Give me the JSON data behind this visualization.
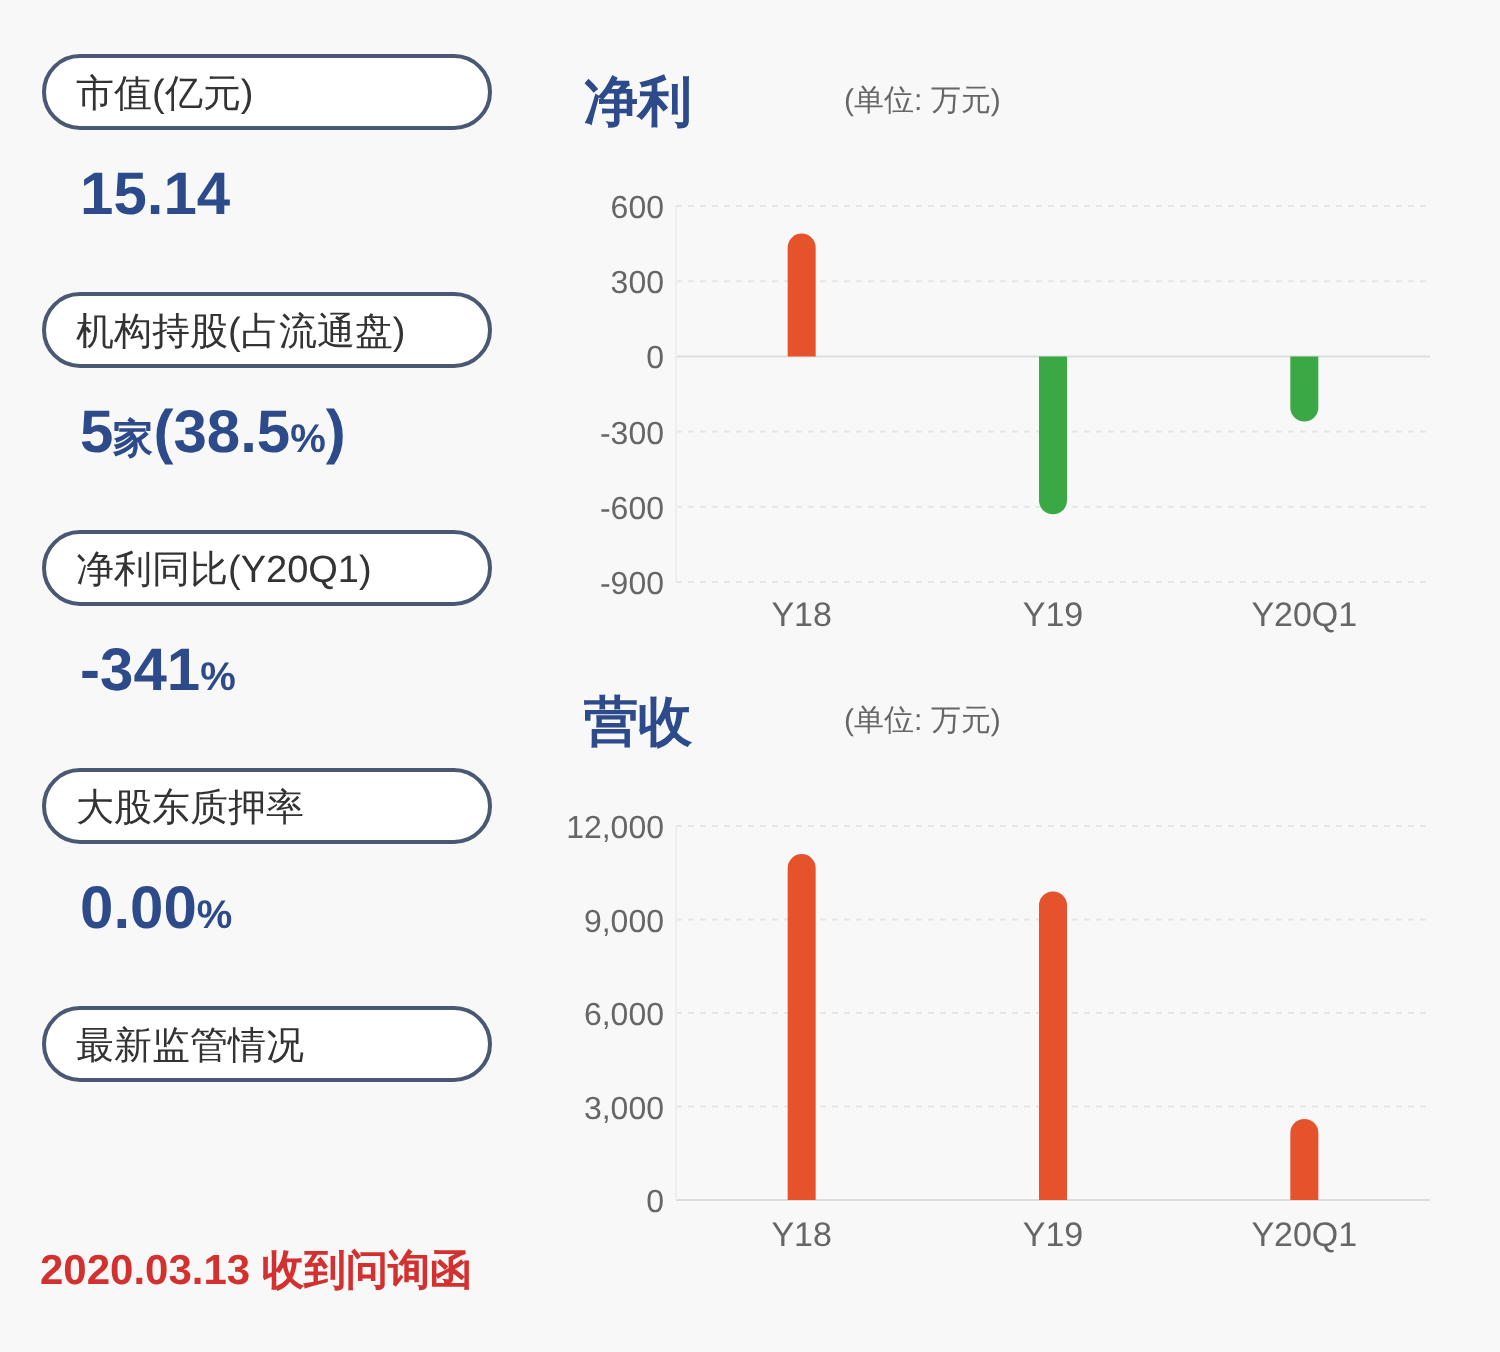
{
  "chart_data": [
    {
      "type": "other",
      "annotations": [
        "市值(亿元)",
        "15.14",
        "机构持股(占流通盘)",
        "5家(38.5%)",
        "净利同比(Y20Q1)",
        "-341%",
        "大股东质押率",
        "0.00%",
        "最新监管情况",
        "2020.03.13 收到问询函"
      ]
    },
    {
      "type": "bar",
      "title": "净利",
      "subtitle": "(单位: 万元)",
      "categories": [
        "Y18",
        "Y19",
        "Y20Q1"
      ],
      "values": [
        490,
        -630,
        -260
      ],
      "colors": [
        "#e4532b",
        "#3aa845",
        "#3aa845"
      ],
      "ylim": [
        -900,
        600
      ],
      "yticks": [
        -900,
        -600,
        -300,
        0,
        300,
        600
      ],
      "grid": "y"
    },
    {
      "type": "bar",
      "title": "营收",
      "subtitle": "(单位: 万元)",
      "categories": [
        "Y18",
        "Y19",
        "Y20Q1"
      ],
      "values": [
        11100,
        9900,
        2600
      ],
      "colors": [
        "#e4532b",
        "#e4532b",
        "#e4532b"
      ],
      "ylim": [
        0,
        12000
      ],
      "yticks": [
        {
          "value": 0,
          "label": "0"
        },
        {
          "value": 3000,
          "label": "3,000"
        },
        {
          "value": 6000,
          "label": "6,000"
        },
        {
          "value": 9000,
          "label": "9,000"
        },
        {
          "value": 12000,
          "label": "12,000"
        }
      ],
      "grid": "y"
    }
  ]
}
